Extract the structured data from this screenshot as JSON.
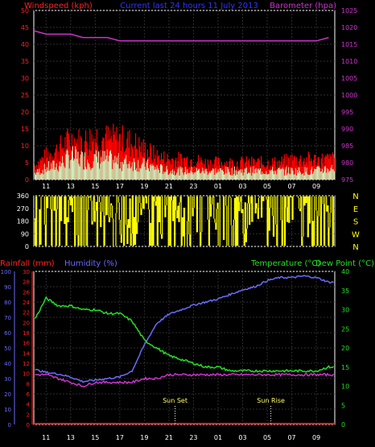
{
  "title": "Current last 24 hours 11 July 2013",
  "colors": {
    "wind": "#ff2020",
    "gust_fill": "#ff0000",
    "wind_avg": "#c8ffc8",
    "barometer": "#cc33cc",
    "direction": "#ffff00",
    "rain": "#ff2020",
    "humidity": "#6a6aff",
    "temperature": "#22e022",
    "dewpoint": "#cc33cc",
    "axis": "#ffffff",
    "grid": "#2e2e2e"
  },
  "time_ticks": [
    "11",
    "13",
    "15",
    "17",
    "19",
    "21",
    "23",
    "01",
    "03",
    "05",
    "07",
    "09"
  ],
  "chart_data": [
    {
      "type": "line",
      "name": "wind-barometer",
      "ylabel_left": "Windspeed (kph)",
      "ylabel_right": "Barometer (hpa)",
      "ylim_left": [
        0,
        50
      ],
      "ylim_right": [
        975,
        1025
      ],
      "yticks_left": [
        "0",
        "5",
        "10",
        "15",
        "20",
        "25",
        "30",
        "35",
        "40",
        "45",
        "50"
      ],
      "yticks_right": [
        "975",
        "980",
        "985",
        "990",
        "995",
        "1000",
        "1005",
        "1010",
        "1015",
        "1020",
        "1025"
      ],
      "x_hours": [
        10,
        11,
        12,
        13,
        14,
        15,
        16,
        17,
        18,
        19,
        20,
        21,
        22,
        23,
        24,
        25,
        26,
        27,
        28,
        29,
        30,
        31,
        32,
        33,
        34
      ],
      "series": [
        {
          "name": "gust",
          "values": [
            4,
            7,
            9,
            12,
            11,
            13,
            12,
            12,
            11,
            9,
            7,
            6,
            6,
            6,
            5,
            5,
            5,
            5,
            5,
            5,
            5,
            6,
            6,
            6,
            6
          ]
        },
        {
          "name": "speed",
          "values": [
            2,
            4,
            5,
            8,
            7,
            7,
            7,
            6,
            6,
            5,
            4,
            3,
            3,
            3,
            3,
            3,
            3,
            3,
            3,
            3,
            3,
            3,
            3,
            3,
            4
          ]
        },
        {
          "name": "barometer",
          "values": [
            1019,
            1018,
            1018,
            1018,
            1017,
            1017,
            1017,
            1016,
            1016,
            1016,
            1016,
            1016,
            1016,
            1016,
            1016,
            1016,
            1016,
            1016,
            1016,
            1016,
            1016,
            1016,
            1016,
            1016,
            1017
          ]
        }
      ]
    },
    {
      "type": "scatter",
      "name": "wind-direction",
      "ylim": [
        0,
        360
      ],
      "yticks": [
        "0",
        "90",
        "180",
        "270",
        "360"
      ],
      "compass": [
        "N",
        "W",
        "S",
        "E",
        "N"
      ]
    },
    {
      "type": "line",
      "name": "rain-humidity-temp",
      "label_rain": "Rainfall (mm)",
      "label_humidity": "Humidity (%)",
      "label_temperature": "Temperature (°C)",
      "label_dewpoint": "Dew Point (°C)",
      "ylim_humidity": [
        0,
        100
      ],
      "ylim_rain": [
        0,
        30
      ],
      "ylim_temp": [
        0,
        40
      ],
      "yticks_humidity": [
        "0",
        "10",
        "20",
        "30",
        "40",
        "50",
        "60",
        "70",
        "80",
        "90",
        "100"
      ],
      "yticks_rain": [
        "0",
        "2",
        "4",
        "6",
        "8",
        "10",
        "12",
        "14",
        "16",
        "18",
        "20",
        "22",
        "24",
        "26",
        "28",
        "30"
      ],
      "yticks_temp": [
        "0",
        "5",
        "10",
        "15",
        "20",
        "25",
        "30",
        "35",
        "40"
      ],
      "x_hours": [
        10,
        11,
        12,
        13,
        14,
        15,
        16,
        17,
        18,
        19,
        20,
        21,
        22,
        23,
        24,
        25,
        26,
        27,
        28,
        29,
        30,
        31,
        32,
        33,
        34
      ],
      "series": [
        {
          "name": "humidity",
          "values": [
            36,
            34,
            33,
            31,
            28,
            29,
            30,
            31,
            35,
            52,
            66,
            72,
            75,
            78,
            80,
            82,
            85,
            88,
            90,
            94,
            96,
            96,
            97,
            96,
            93
          ]
        },
        {
          "name": "temperature",
          "values": [
            27,
            33,
            31,
            31,
            30,
            30,
            29,
            29,
            27,
            22,
            20,
            18,
            17,
            16,
            15,
            15,
            14,
            14,
            14,
            14,
            14,
            14,
            14,
            14,
            15
          ]
        },
        {
          "name": "dewpoint",
          "values": [
            13,
            13,
            12,
            11,
            10,
            11,
            11,
            11,
            11,
            12,
            12,
            13,
            13,
            13,
            13,
            13,
            13,
            13,
            13,
            13,
            13,
            13,
            13,
            13,
            13
          ]
        },
        {
          "name": "rainfall",
          "values": [
            0,
            0,
            0,
            0,
            0,
            0,
            0,
            0,
            0,
            0,
            0,
            0,
            0,
            0,
            0,
            0,
            0,
            0,
            0,
            0,
            0,
            0,
            0,
            0,
            0
          ]
        }
      ],
      "annotations": [
        {
          "label": "Sun Set",
          "x_hour": 21.5
        },
        {
          "label": "Sun Rise",
          "x_hour": 29.3
        }
      ],
      "tick_overlay": "Sun Set"
    }
  ]
}
